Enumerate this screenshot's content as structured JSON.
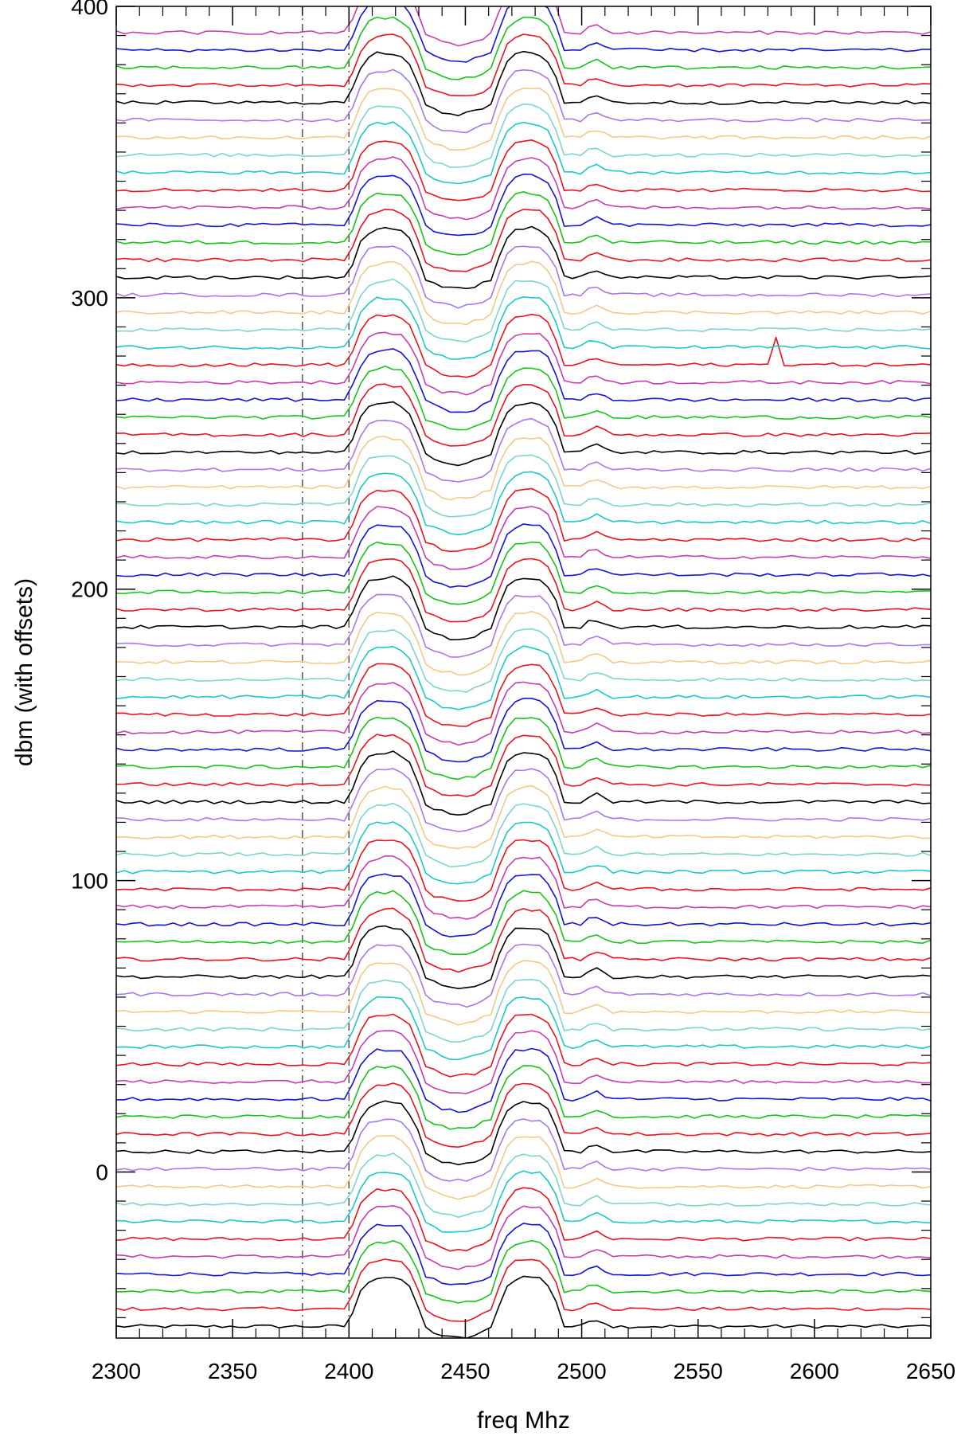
{
  "chart_data": {
    "type": "line",
    "title": "",
    "xlabel": "freq Mhz",
    "ylabel": "dbm (with offsets)",
    "xlim": [
      2300,
      2650
    ],
    "ylim": [
      -57,
      400
    ],
    "x_ticks": [
      2300,
      2350,
      2400,
      2450,
      2500,
      2550,
      2600,
      2650
    ],
    "x_minor_step": 10,
    "y_ticks": [
      0,
      100,
      200,
      300,
      400
    ],
    "y_minor_step": 10,
    "grid": false,
    "legend": "none",
    "x_step": 3.5,
    "series_offset_step": 6,
    "series_count": 75,
    "baseline_first": -53,
    "color_cycle": [
      "#000000",
      "#e8141e",
      "#19c419",
      "#1414d2",
      "#c83cb4",
      "#e8141e",
      "#1ec8c8",
      "#82d2d2",
      "#f5c88c",
      "#aa78e6"
    ],
    "reference_lines": [
      {
        "x": 2380,
        "style": "dash-dot",
        "color": "#555555"
      },
      {
        "x": 2400,
        "style": "dash-dot",
        "color": "#555555"
      }
    ],
    "spectral_shape": {
      "band_1": {
        "from": 2400,
        "to": 2432,
        "peak_x": 2417,
        "height": 17
      },
      "band_2": {
        "from": 2462,
        "to": 2492,
        "peak_x": 2477,
        "height": 17
      },
      "dip_between": {
        "x": 2447,
        "depth": -4
      },
      "spike": {
        "x": 2583,
        "height": 10,
        "series_index": 55
      }
    },
    "series_labels": "none"
  }
}
